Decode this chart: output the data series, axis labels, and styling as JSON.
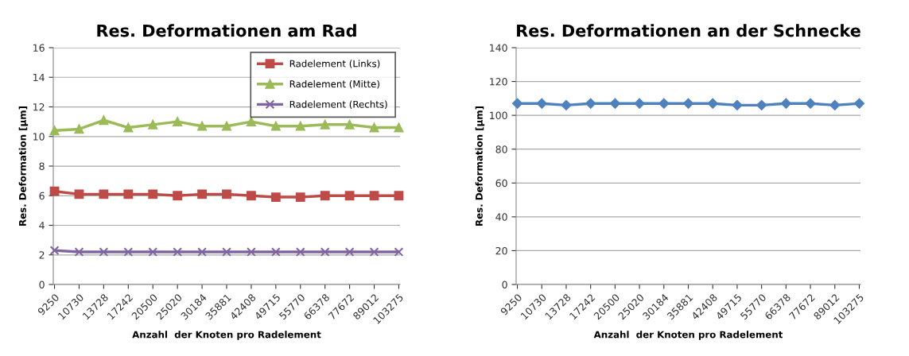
{
  "chart_data": [
    {
      "type": "line",
      "title": "Res. Deformationen am Rad",
      "xlabel": "Anzahl  der Knoten pro Radelement",
      "ylabel": "Res. Deformation [µm]",
      "categories": [
        "9250",
        "10730",
        "13728",
        "17242",
        "20500",
        "25020",
        "30184",
        "35881",
        "42408",
        "49715",
        "55770",
        "66378",
        "77672",
        "89012",
        "103275"
      ],
      "series": [
        {
          "name": "Radelement (Links)",
          "color": "#be4b48",
          "marker": "square",
          "values": [
            6.3,
            6.1,
            6.1,
            6.1,
            6.1,
            6.0,
            6.1,
            6.1,
            6.0,
            5.9,
            5.9,
            6.0,
            6.0,
            6.0,
            6.0
          ]
        },
        {
          "name": "Radelement (Mitte)",
          "color": "#9bbb59",
          "marker": "triangle",
          "values": [
            10.4,
            10.5,
            11.1,
            10.6,
            10.8,
            11.0,
            10.7,
            10.7,
            11.0,
            10.7,
            10.7,
            10.8,
            10.8,
            10.6,
            10.6
          ]
        },
        {
          "name": "Radelement (Rechts)",
          "color": "#8064a2",
          "marker": "cross",
          "values": [
            2.3,
            2.2,
            2.2,
            2.2,
            2.2,
            2.2,
            2.2,
            2.2,
            2.2,
            2.2,
            2.2,
            2.2,
            2.2,
            2.2,
            2.2
          ]
        }
      ],
      "ylim": [
        0,
        16
      ],
      "yticks": [
        0,
        2,
        4,
        6,
        8,
        10,
        12,
        14,
        16
      ],
      "grid": "y",
      "legend": "top right"
    },
    {
      "type": "line",
      "title": "Res. Deformationen an der Schnecke",
      "xlabel": "Anzahl  der Knoten pro Radelement",
      "ylabel": "Res. Deformation [µm]",
      "categories": [
        "9250",
        "10730",
        "13728",
        "17242",
        "20500",
        "25020",
        "30184",
        "35881",
        "42408",
        "49715",
        "55770",
        "66378",
        "77672",
        "89012",
        "103275"
      ],
      "series": [
        {
          "color": "#4f81bd",
          "marker": "diamond",
          "values": [
            107,
            107,
            106,
            107,
            107,
            107,
            107,
            107,
            107,
            106,
            106,
            107,
            107,
            106,
            107
          ]
        }
      ],
      "ylim": [
        0,
        140
      ],
      "yticks": [
        0,
        20,
        40,
        60,
        80,
        100,
        120,
        140
      ],
      "grid": "y",
      "legend": false
    }
  ]
}
